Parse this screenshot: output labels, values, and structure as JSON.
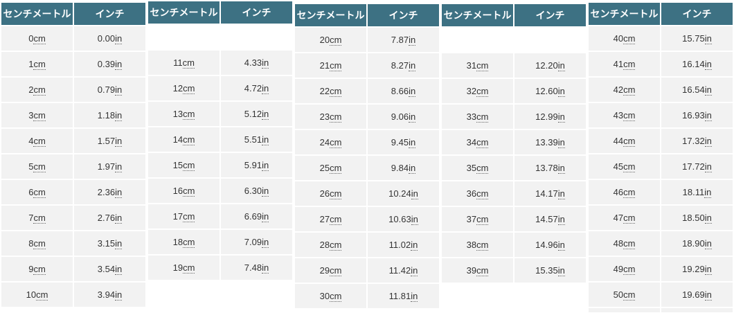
{
  "column_headers": {
    "cm": "センチメートル",
    "inch": "インチ"
  },
  "units": {
    "cm": "cm",
    "inch": "in"
  },
  "theme": {
    "header_bg": "#3d7183",
    "header_text": "#ffffff",
    "cell_bg": "#f2f2f2",
    "cell_text": "#333333",
    "page_bg": "#ffffff"
  },
  "tables": [
    {
      "name": "cm-0-to-10",
      "leading_blank": false,
      "trailing_blank": false,
      "partial_next_row": false,
      "rows": [
        [
          "0",
          "0.00"
        ],
        [
          "1",
          "0.39"
        ],
        [
          "2",
          "0.79"
        ],
        [
          "3",
          "1.18"
        ],
        [
          "4",
          "1.57"
        ],
        [
          "5",
          "1.97"
        ],
        [
          "6",
          "2.36"
        ],
        [
          "7",
          "2.76"
        ],
        [
          "8",
          "3.15"
        ],
        [
          "9",
          "3.54"
        ],
        [
          "10",
          "3.94"
        ]
      ]
    },
    {
      "name": "cm-11-to-19",
      "leading_blank": true,
      "trailing_blank": true,
      "partial_next_row": false,
      "rows": [
        [
          "11",
          "4.33"
        ],
        [
          "12",
          "4.72"
        ],
        [
          "13",
          "5.12"
        ],
        [
          "14",
          "5.51"
        ],
        [
          "15",
          "5.91"
        ],
        [
          "16",
          "6.30"
        ],
        [
          "17",
          "6.69"
        ],
        [
          "18",
          "7.09"
        ],
        [
          "19",
          "7.48"
        ]
      ]
    },
    {
      "name": "cm-20-to-30",
      "leading_blank": false,
      "trailing_blank": false,
      "partial_next_row": false,
      "rows": [
        [
          "20",
          "7.87"
        ],
        [
          "21",
          "8.27"
        ],
        [
          "22",
          "8.66"
        ],
        [
          "23",
          "9.06"
        ],
        [
          "24",
          "9.45"
        ],
        [
          "25",
          "9.84"
        ],
        [
          "26",
          "10.24"
        ],
        [
          "27",
          "10.63"
        ],
        [
          "28",
          "11.02"
        ],
        [
          "29",
          "11.42"
        ],
        [
          "30",
          "11.81"
        ]
      ]
    },
    {
      "name": "cm-31-to-39",
      "leading_blank": true,
      "trailing_blank": true,
      "partial_next_row": false,
      "rows": [
        [
          "31",
          "12.20"
        ],
        [
          "32",
          "12.60"
        ],
        [
          "33",
          "12.99"
        ],
        [
          "34",
          "13.39"
        ],
        [
          "35",
          "13.78"
        ],
        [
          "36",
          "14.17"
        ],
        [
          "37",
          "14.57"
        ],
        [
          "38",
          "14.96"
        ],
        [
          "39",
          "15.35"
        ]
      ]
    },
    {
      "name": "cm-40-to-50",
      "leading_blank": false,
      "trailing_blank": false,
      "partial_next_row": true,
      "rows": [
        [
          "40",
          "15.75"
        ],
        [
          "41",
          "16.14"
        ],
        [
          "42",
          "16.54"
        ],
        [
          "43",
          "16.93"
        ],
        [
          "44",
          "17.32"
        ],
        [
          "45",
          "17.72"
        ],
        [
          "46",
          "18.11"
        ],
        [
          "47",
          "18.50"
        ],
        [
          "48",
          "18.90"
        ],
        [
          "49",
          "19.29"
        ],
        [
          "50",
          "19.69"
        ]
      ]
    }
  ]
}
